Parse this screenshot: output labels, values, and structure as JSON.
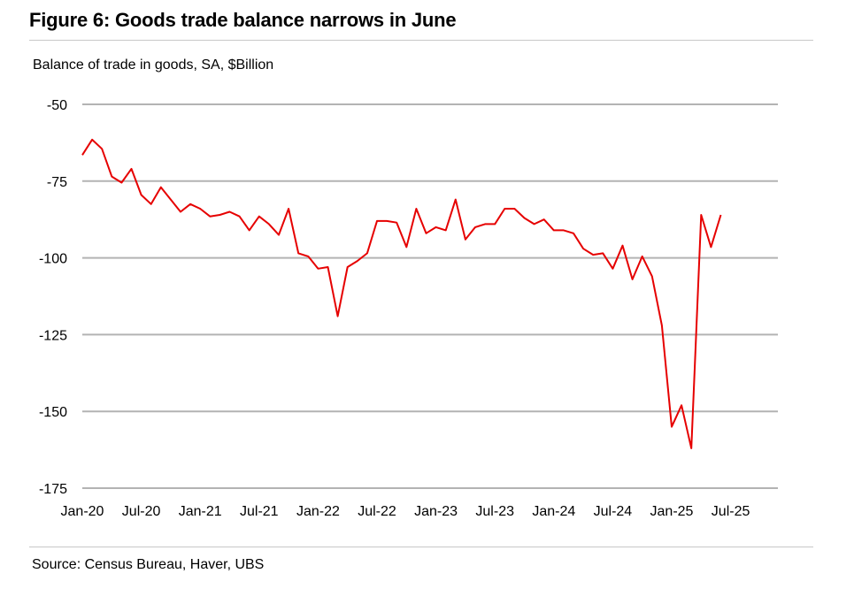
{
  "figure": {
    "title": "Figure 6: Goods trade balance narrows in June",
    "source": "Source: Census Bureau, Haver, UBS"
  },
  "chart_data": {
    "type": "line",
    "title": "Figure 6: Goods trade balance narrows in June",
    "ylabel": "Balance of trade in goods, SA, $Billion",
    "xlabel": "",
    "ylim": [
      -175,
      -50
    ],
    "yticks": [
      -50,
      -75,
      -100,
      -125,
      -150,
      -175
    ],
    "xticks": [
      "Jan-20",
      "Jul-20",
      "Jan-21",
      "Jul-21",
      "Jan-22",
      "Jul-22",
      "Jan-23",
      "Jul-23",
      "Jan-24",
      "Jul-24",
      "Jan-25",
      "Jul-25"
    ],
    "grid": "horizontal",
    "line_color": "#e60000",
    "series": [
      {
        "x": [
          "Jan-20",
          "Feb-20",
          "Mar-20",
          "Apr-20",
          "May-20",
          "Jun-20",
          "Jul-20",
          "Aug-20",
          "Sep-20",
          "Oct-20",
          "Nov-20",
          "Dec-20",
          "Jan-21",
          "Feb-21",
          "Mar-21",
          "Apr-21",
          "May-21",
          "Jun-21",
          "Jul-21",
          "Aug-21",
          "Sep-21",
          "Oct-21",
          "Nov-21",
          "Dec-21",
          "Jan-22",
          "Feb-22",
          "Mar-22",
          "Apr-22",
          "May-22",
          "Jun-22",
          "Jul-22",
          "Aug-22",
          "Sep-22",
          "Oct-22",
          "Nov-22",
          "Dec-22",
          "Jan-23",
          "Feb-23",
          "Mar-23",
          "Apr-23",
          "May-23",
          "Jun-23",
          "Jul-23",
          "Aug-23",
          "Sep-23",
          "Oct-23",
          "Nov-23",
          "Dec-23",
          "Jan-24",
          "Feb-24",
          "Mar-24",
          "Apr-24",
          "May-24",
          "Jun-24",
          "Jul-24",
          "Aug-24",
          "Sep-24",
          "Oct-24",
          "Nov-24",
          "Dec-24",
          "Jan-25",
          "Feb-25",
          "Mar-25",
          "Apr-25",
          "May-25",
          "Jun-25"
        ],
        "values": [
          -66.5,
          -61.5,
          -64.5,
          -73.5,
          -75.5,
          -71,
          -79.5,
          -82.5,
          -77,
          -81,
          -85,
          -82.5,
          -84,
          -86.5,
          -86,
          -85,
          -86.5,
          -91,
          -86.5,
          -89,
          -92.5,
          -84,
          -98.5,
          -99.5,
          -103.5,
          -103,
          -119,
          -103,
          -101,
          -98.5,
          -88,
          -88,
          -88.5,
          -96.5,
          -84,
          -92,
          -90,
          -91,
          -81,
          -94,
          -90,
          -89,
          -89,
          -84,
          -84,
          -87,
          -89,
          -87.5,
          -91,
          -91,
          -92,
          -97,
          -99,
          -98.5,
          -103.5,
          -96,
          -107,
          -99.5,
          -106,
          -122,
          -155,
          -148,
          -162,
          -86,
          -96.5,
          -86
        ]
      }
    ]
  }
}
